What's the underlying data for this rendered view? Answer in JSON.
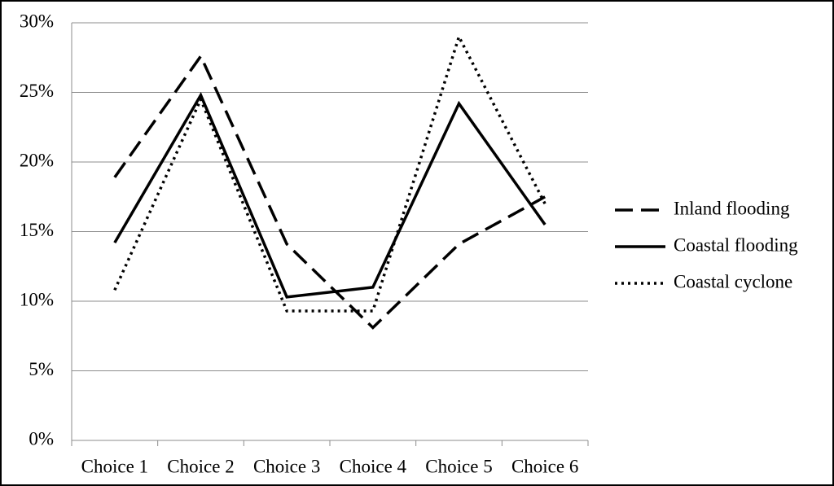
{
  "chart_data": {
    "type": "line",
    "categories": [
      "Choice 1",
      "Choice 2",
      "Choice 3",
      "Choice 4",
      "Choice 5",
      "Choice 6"
    ],
    "series": [
      {
        "name": "Inland flooding",
        "color": "#000000",
        "dash": "dashed",
        "values": [
          18.9,
          27.6,
          14.1,
          8.1,
          14.1,
          17.5
        ]
      },
      {
        "name": "Coastal flooding",
        "color": "#000000",
        "dash": "solid",
        "values": [
          14.2,
          24.8,
          10.3,
          11.0,
          24.2,
          15.5
        ]
      },
      {
        "name": "Coastal cyclone",
        "color": "#000000",
        "dash": "dotted",
        "values": [
          10.8,
          24.5,
          9.3,
          9.3,
          29.0,
          17.0
        ]
      }
    ],
    "ylim": [
      0,
      30
    ],
    "yticks": [
      {
        "value": 0,
        "label": "0%"
      },
      {
        "value": 5,
        "label": "5%"
      },
      {
        "value": 10,
        "label": "10%"
      },
      {
        "value": 15,
        "label": "15%"
      },
      {
        "value": 20,
        "label": "20%"
      },
      {
        "value": 25,
        "label": "25%"
      },
      {
        "value": 30,
        "label": "30%"
      }
    ],
    "grid": true,
    "legend": "right"
  }
}
